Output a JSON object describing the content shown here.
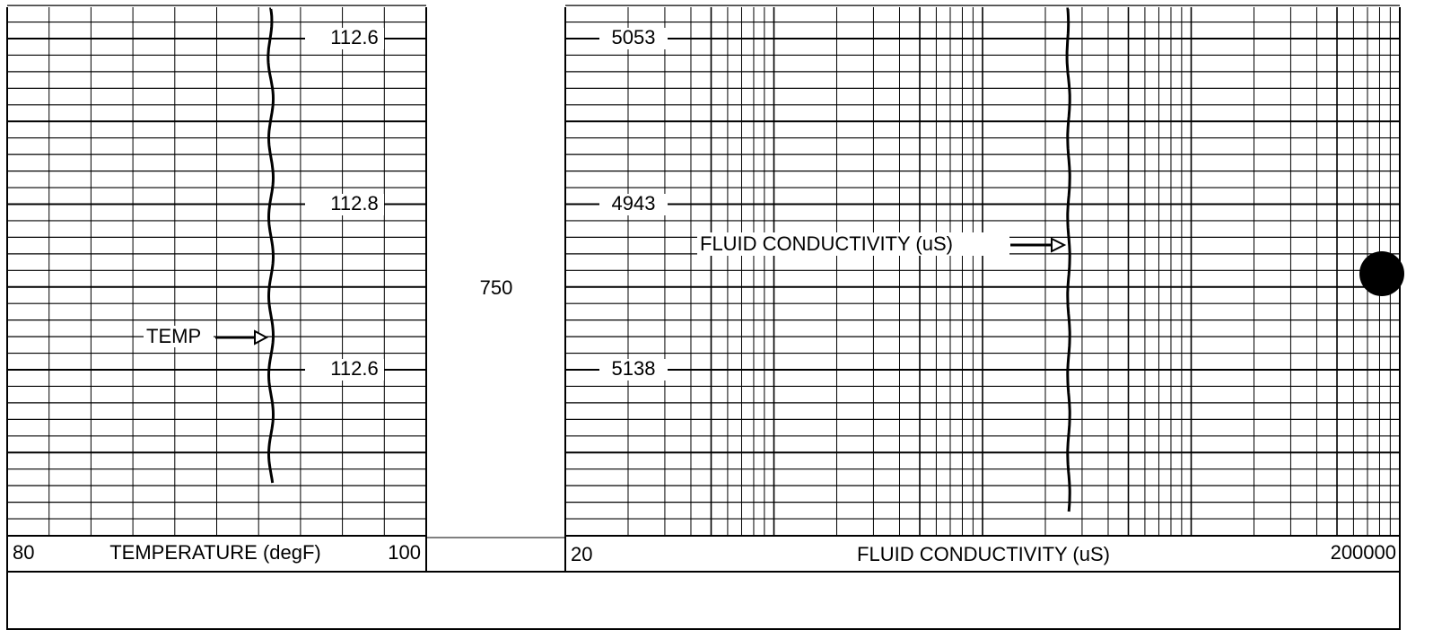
{
  "left_track": {
    "labels": [
      112.6,
      112.8,
      112.6
    ],
    "curve_name": "TEMP",
    "scale": {
      "min": 80,
      "title": "TEMPERATURE (degF)",
      "max": 100
    }
  },
  "depth": 750,
  "right_track": {
    "labels": [
      5053,
      4943,
      5138
    ],
    "curve_name": "FLUID CONDUCTIVITY (uS)",
    "scale": {
      "min": 20,
      "title": "FLUID CONDUCTIVITY (uS)",
      "max": 200000
    }
  }
}
